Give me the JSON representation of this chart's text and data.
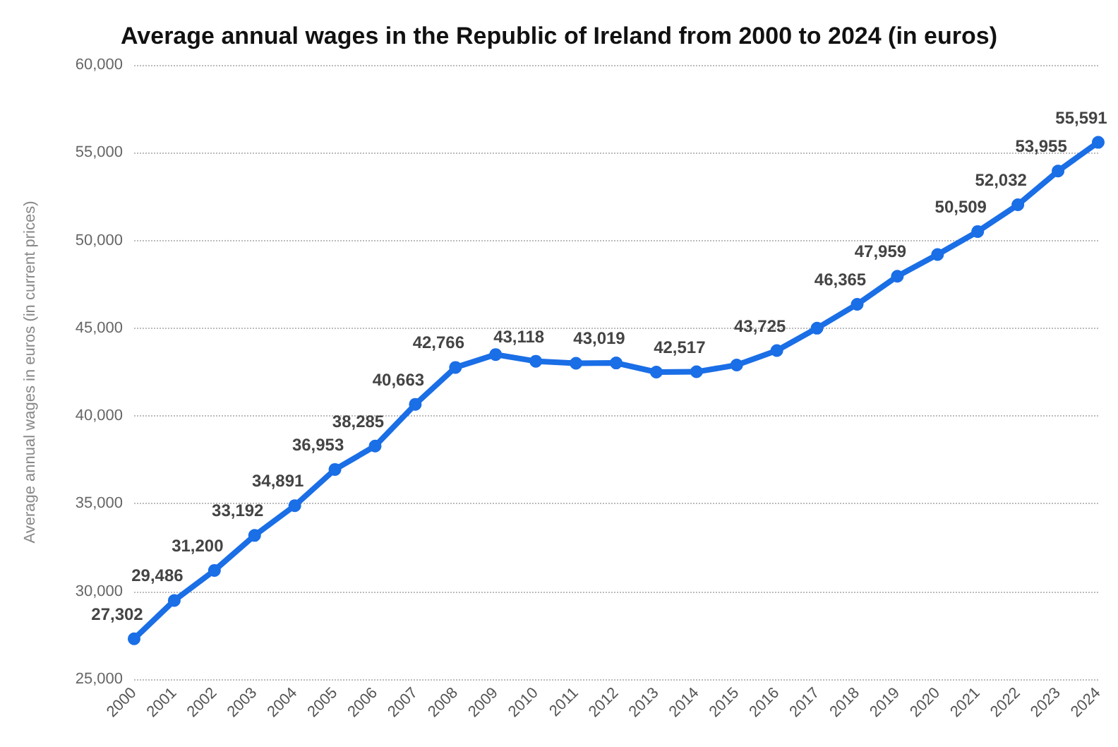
{
  "chart_data": {
    "type": "line",
    "title": "Average annual wages in the Republic of Ireland from 2000 to 2024 (in euros)",
    "ylabel": "Average annual wages in euros (in current prices)",
    "categories": [
      "2000",
      "2001",
      "2002",
      "2003",
      "2004",
      "2005",
      "2006",
      "2007",
      "2008",
      "2009",
      "2010",
      "2011",
      "2012",
      "2013",
      "2014",
      "2015",
      "2016",
      "2017",
      "2018",
      "2019",
      "2020",
      "2021",
      "2022",
      "2023",
      "2024"
    ],
    "series": [
      {
        "color": "#1a6ee6",
        "values": [
          27302,
          29486,
          31200,
          33192,
          34891,
          36953,
          38285,
          40663,
          42766,
          43500,
          43118,
          43000,
          43019,
          42500,
          42517,
          42900,
          43725,
          45000,
          46365,
          47959,
          49200,
          50509,
          52032,
          53955,
          55591
        ],
        "value_labels": [
          "27,302",
          "29,486",
          "31,200",
          "33,192",
          "34,891",
          "36,953",
          "38,285",
          "40,663",
          "42,766",
          null,
          "43,118",
          null,
          "43,019",
          null,
          "42,517",
          null,
          "43,725",
          null,
          "46,365",
          "47,959",
          null,
          "50,509",
          "52,032",
          "53,955",
          "55,591"
        ]
      }
    ],
    "ylim": [
      25000,
      60000
    ],
    "yticks": [
      {
        "value": 25000,
        "label": "25,000"
      },
      {
        "value": 30000,
        "label": "30,000"
      },
      {
        "value": 35000,
        "label": "35,000"
      },
      {
        "value": 40000,
        "label": "40,000"
      },
      {
        "value": 45000,
        "label": "45,000"
      },
      {
        "value": 50000,
        "label": "50,000"
      },
      {
        "value": 55000,
        "label": "55,000"
      },
      {
        "value": 60000,
        "label": "60,000"
      }
    ],
    "grid": "y",
    "marker": "circle",
    "line_style": "solid"
  }
}
